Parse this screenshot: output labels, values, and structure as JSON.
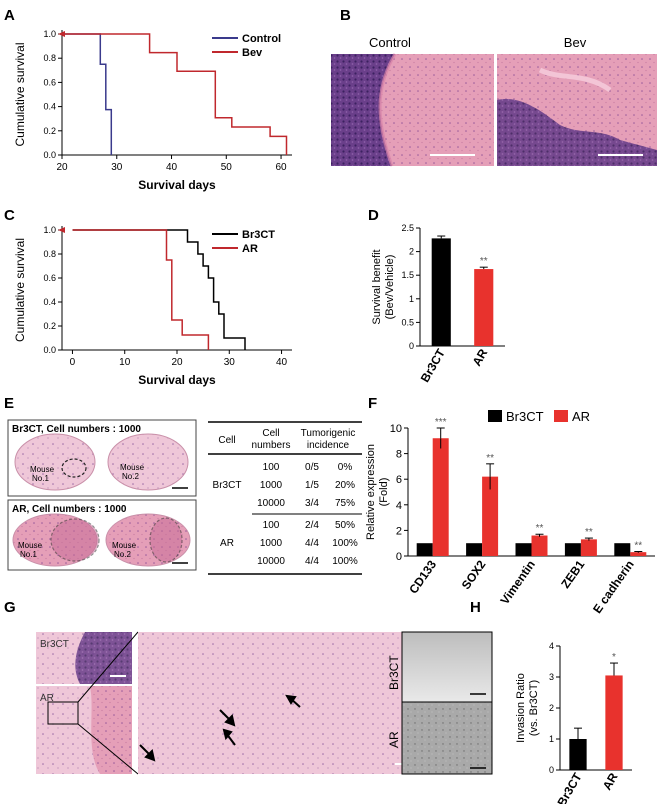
{
  "panels": {
    "A": {
      "letter": "A"
    },
    "B": {
      "letter": "B",
      "label_control": "Control",
      "label_bev": "Bev"
    },
    "C": {
      "letter": "C"
    },
    "D": {
      "letter": "D"
    },
    "E": {
      "letter": "E",
      "top_caption": "Br3CT, Cell numbers : 1000",
      "bottom_caption": "AR, Cell numbers : 1000",
      "mouse1": "Mouse",
      "mouse1b": "No.1",
      "mouse2": "Mouse",
      "mouse2b": "No.2",
      "table": {
        "headers": [
          "Cell",
          "Cell numbers",
          "Tumorigenic incidence"
        ],
        "groups": [
          {
            "cell": "Br3CT",
            "rows": [
              [
                "100",
                "0/5",
                "0%"
              ],
              [
                "1000",
                "1/5",
                "20%"
              ],
              [
                "10000",
                "3/4",
                "75%"
              ]
            ]
          },
          {
            "cell": "AR",
            "rows": [
              [
                "100",
                "2/4",
                "50%"
              ],
              [
                "1000",
                "4/4",
                "100%"
              ],
              [
                "10000",
                "4/4",
                "100%"
              ]
            ]
          }
        ]
      }
    },
    "F": {
      "letter": "F"
    },
    "G": {
      "letter": "G",
      "label_top": "Br3CT",
      "label_bottom": "AR"
    },
    "H": {
      "letter": "H",
      "label_top": "Br3CT",
      "label_bottom": "AR"
    }
  },
  "chart_data": [
    {
      "id": "A",
      "type": "line",
      "xlabel": "Survival days",
      "ylabel": "Cumulative survival",
      "xlim": [
        20,
        62
      ],
      "ylim": [
        0,
        1.0
      ],
      "xticks": [
        20,
        30,
        40,
        50,
        60
      ],
      "yticks": [
        "0.0",
        "0.2",
        "0.4",
        "0.6",
        "0.8",
        "1.0"
      ],
      "legend": "top-right",
      "series": [
        {
          "name": "Control",
          "color": "#3a3a8c",
          "steps": [
            [
              20,
              1.0
            ],
            [
              27,
              1.0
            ],
            [
              27,
              0.75
            ],
            [
              28,
              0.75
            ],
            [
              28,
              0.375
            ],
            [
              29,
              0.375
            ],
            [
              29,
              0
            ]
          ]
        },
        {
          "name": "Bev",
          "color": "#c0282d",
          "steps": [
            [
              20,
              1.0
            ],
            [
              36,
              1.0
            ],
            [
              36,
              0.846
            ],
            [
              41,
              0.846
            ],
            [
              41,
              0.692
            ],
            [
              48,
              0.692
            ],
            [
              48,
              0.538
            ],
            [
              48,
              0.538
            ],
            [
              48,
              0.308
            ],
            [
              51,
              0.308
            ],
            [
              51,
              0.231
            ],
            [
              55,
              0.231
            ],
            [
              55,
              0.231
            ],
            [
              58,
              0.231
            ],
            [
              58,
              0.154
            ],
            [
              61,
              0.154
            ],
            [
              61,
              0
            ]
          ]
        }
      ]
    },
    {
      "id": "C",
      "type": "line",
      "xlabel": "Survival days",
      "ylabel": "Cumulative survival",
      "xlim": [
        -2,
        42
      ],
      "ylim": [
        0,
        1.0
      ],
      "xticks": [
        0,
        10,
        20,
        30,
        40
      ],
      "yticks": [
        "0.0",
        "0.2",
        "0.4",
        "0.6",
        "0.8",
        "1.0"
      ],
      "legend": "top-right",
      "series": [
        {
          "name": "Br3CT",
          "color": "#000000",
          "steps": [
            [
              0,
              1.0
            ],
            [
              22,
              1.0
            ],
            [
              22,
              0.9
            ],
            [
              24,
              0.9
            ],
            [
              24,
              0.8
            ],
            [
              25,
              0.8
            ],
            [
              25,
              0.7
            ],
            [
              26,
              0.7
            ],
            [
              26,
              0.6
            ],
            [
              27,
              0.6
            ],
            [
              27,
              0.5
            ],
            [
              27,
              0.4
            ],
            [
              28,
              0.4
            ],
            [
              28,
              0.3
            ],
            [
              29,
              0.3
            ],
            [
              29,
              0.1
            ],
            [
              33,
              0.1
            ],
            [
              33,
              0
            ]
          ]
        },
        {
          "name": "AR",
          "color": "#c0282d",
          "steps": [
            [
              0,
              1.0
            ],
            [
              18,
              1.0
            ],
            [
              18,
              0.75
            ],
            [
              19,
              0.75
            ],
            [
              19,
              0.25
            ],
            [
              21,
              0.25
            ],
            [
              21,
              0.125
            ],
            [
              26,
              0.125
            ],
            [
              26,
              0
            ]
          ]
        }
      ]
    },
    {
      "id": "D",
      "type": "bar",
      "ylabel": "Survival benefit (Bev/Vehicle)",
      "ylim": [
        0,
        2.5
      ],
      "yticks": [
        "0",
        "0.5",
        "1",
        "1.5",
        "2",
        "2.5"
      ],
      "categories": [
        "Br3CT",
        "AR"
      ],
      "values": [
        2.28,
        1.63
      ],
      "errors": [
        0.05,
        0.04
      ],
      "colors": [
        "#000000",
        "#e8322d"
      ],
      "annotations": [
        "",
        "**"
      ]
    },
    {
      "id": "F",
      "type": "bar",
      "ylabel": "Relative expression (Fold)",
      "ylim": [
        0,
        10
      ],
      "yticks": [
        "0",
        "2",
        "4",
        "6",
        "8",
        "10"
      ],
      "categories": [
        "CD133",
        "SOX2",
        "Vimentin",
        "ZEB1",
        "E cadherin"
      ],
      "series": [
        {
          "name": "Br3CT",
          "color": "#000000",
          "values": [
            1,
            1,
            1,
            1,
            1
          ],
          "errors": [
            0,
            0,
            0,
            0,
            0
          ]
        },
        {
          "name": "AR",
          "color": "#e8322d",
          "values": [
            9.2,
            6.2,
            1.6,
            1.3,
            0.3
          ],
          "errors": [
            0.8,
            1.0,
            0.1,
            0.1,
            0.05
          ]
        }
      ],
      "annotations": [
        "***",
        "**",
        "**",
        "**",
        "**"
      ],
      "legend": "top"
    },
    {
      "id": "H",
      "type": "bar",
      "ylabel": "Invasion Ratio (vs. Br3CT)",
      "ylim": [
        0,
        4
      ],
      "yticks": [
        "0",
        "1",
        "2",
        "3",
        "4"
      ],
      "categories": [
        "Br3CT",
        "AR"
      ],
      "values": [
        1.0,
        3.05
      ],
      "errors": [
        0.35,
        0.4
      ],
      "colors": [
        "#000000",
        "#e8322d"
      ],
      "annotations": [
        "",
        "*"
      ]
    }
  ]
}
